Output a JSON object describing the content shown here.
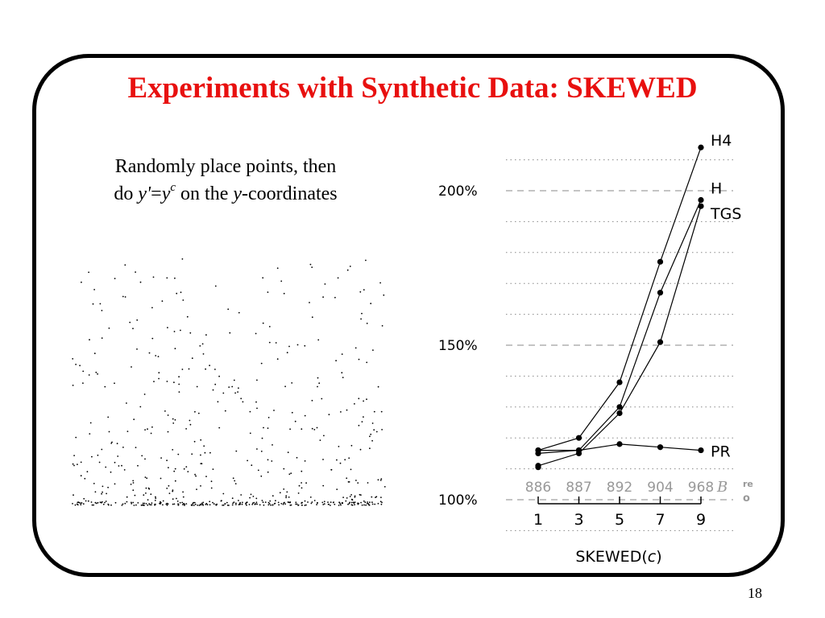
{
  "slide": {
    "title": "Experiments with Synthetic Data: SKEWED",
    "page_number": "18"
  },
  "description": {
    "line1": "Randomly place points, then",
    "line2_do": "do ",
    "y_prime": "y'",
    "equals": "=",
    "y": "y",
    "c": "c",
    "on_the": " on the ",
    "y2": "y",
    "coordinates": "-coordinates"
  },
  "scatter_illustration": {
    "dot_color": "#000000",
    "point_count": 460,
    "distribution": "y' = y^c (dense near bottom)"
  },
  "chart_data": {
    "type": "line",
    "xlabel": "SKEWED(",
    "xlabel_italic": "c",
    "xlabel_close": ")",
    "x": [
      1,
      3,
      5,
      7,
      9
    ],
    "x_tick_labels": [
      "1",
      "3",
      "5",
      "7",
      "9"
    ],
    "ylim": [
      100,
      226
    ],
    "y_ticks": [
      100,
      150,
      200
    ],
    "y_tick_labels": [
      "100%",
      "150%",
      "200%"
    ],
    "top_row_values": [
      "886",
      "887",
      "892",
      "904",
      "968"
    ],
    "top_row_suffix": "B",
    "top_row_color": "#999999",
    "clipped_label_1": "re",
    "clipped_label_2": "o",
    "grid": "dotted horizontal lines every 10%, dashed at 100%, 150%, 200%",
    "series": [
      {
        "name": "H4",
        "values": [
          116,
          120,
          138,
          177,
          214
        ]
      },
      {
        "name": "H",
        "values": [
          115,
          116,
          130,
          167,
          197
        ]
      },
      {
        "name": "TGS",
        "values": [
          111,
          115,
          128,
          151,
          195
        ]
      },
      {
        "name": "PR",
        "values": [
          116,
          116,
          118,
          117,
          116
        ]
      }
    ],
    "extra_points": [
      {
        "x": 1,
        "y": 110.5
      }
    ]
  }
}
